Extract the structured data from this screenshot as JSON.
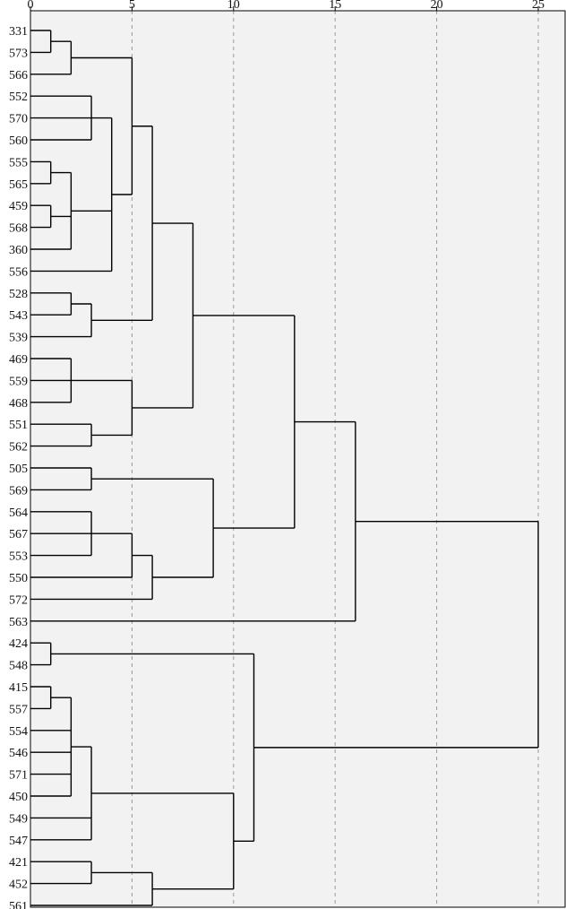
{
  "chart_data": {
    "type": "dendrogram",
    "orientation": "horizontal",
    "title": "",
    "xlabel": "",
    "ylabel": "",
    "xlim": [
      0,
      25
    ],
    "x_ticks": [
      0,
      5,
      10,
      15,
      20,
      25
    ],
    "grid": "vertical dashed lines at each x tick",
    "plot_background": "#f2f2f2",
    "line_color": "#000000",
    "grid_color": "#9a9a9a",
    "leaves": [
      "331",
      "573",
      "566",
      "552",
      "570",
      "560",
      "555",
      "565",
      "459",
      "568",
      "360",
      "556",
      "528",
      "543",
      "539",
      "469",
      "559",
      "468",
      "551",
      "562",
      "505",
      "569",
      "564",
      "567",
      "553",
      "550",
      "572",
      "563",
      "424",
      "548",
      "415",
      "557",
      "554",
      "546",
      "571",
      "450",
      "549",
      "547",
      "421",
      "452",
      "561"
    ],
    "merges": [
      {
        "id": "A",
        "children": [
          "331",
          "573"
        ],
        "height": 1
      },
      {
        "id": "B",
        "children": [
          "A",
          "566"
        ],
        "height": 2
      },
      {
        "id": "C",
        "children": [
          "552",
          "570",
          "560"
        ],
        "height": 3
      },
      {
        "id": "D",
        "children": [
          "555",
          "565"
        ],
        "height": 1
      },
      {
        "id": "E",
        "children": [
          "459",
          "568"
        ],
        "height": 1
      },
      {
        "id": "F",
        "children": [
          "D",
          "E",
          "360"
        ],
        "height": 2
      },
      {
        "id": "G",
        "children": [
          "C",
          "F",
          "556"
        ],
        "height": 4
      },
      {
        "id": "H",
        "children": [
          "B",
          "G"
        ],
        "height": 5
      },
      {
        "id": "I",
        "children": [
          "528",
          "543"
        ],
        "height": 2
      },
      {
        "id": "J",
        "children": [
          "I",
          "539"
        ],
        "height": 3
      },
      {
        "id": "K",
        "children": [
          "H",
          "J"
        ],
        "height": 6
      },
      {
        "id": "L",
        "children": [
          "469",
          "559",
          "468"
        ],
        "height": 2
      },
      {
        "id": "M",
        "children": [
          "551",
          "562"
        ],
        "height": 3
      },
      {
        "id": "N",
        "children": [
          "L",
          "M"
        ],
        "height": 5
      },
      {
        "id": "O",
        "children": [
          "K",
          "N"
        ],
        "height": 8
      },
      {
        "id": "P",
        "children": [
          "505",
          "569"
        ],
        "height": 3
      },
      {
        "id": "Q",
        "children": [
          "564",
          "567",
          "553"
        ],
        "height": 3
      },
      {
        "id": "R",
        "children": [
          "Q",
          "550"
        ],
        "height": 5
      },
      {
        "id": "S",
        "children": [
          "R",
          "572"
        ],
        "height": 6
      },
      {
        "id": "T",
        "children": [
          "P",
          "S"
        ],
        "height": 9
      },
      {
        "id": "U",
        "children": [
          "O",
          "T"
        ],
        "height": 13
      },
      {
        "id": "V",
        "children": [
          "U",
          "563"
        ],
        "height": 16
      },
      {
        "id": "W",
        "children": [
          "424",
          "548"
        ],
        "height": 1
      },
      {
        "id": "X",
        "children": [
          "415",
          "557"
        ],
        "height": 1
      },
      {
        "id": "Y",
        "children": [
          "X",
          "554",
          "546",
          "571",
          "450"
        ],
        "height": 2
      },
      {
        "id": "Z",
        "children": [
          "Y",
          "549",
          "547"
        ],
        "height": 3
      },
      {
        "id": "AA",
        "children": [
          "421",
          "452"
        ],
        "height": 3
      },
      {
        "id": "AB",
        "children": [
          "AA",
          "561"
        ],
        "height": 6
      },
      {
        "id": "AC",
        "children": [
          "Z",
          "AB"
        ],
        "height": 10
      },
      {
        "id": "AD",
        "children": [
          "W",
          "AC"
        ],
        "height": 11
      },
      {
        "id": "ROOT",
        "children": [
          "V",
          "AD"
        ],
        "height": 25
      }
    ]
  }
}
